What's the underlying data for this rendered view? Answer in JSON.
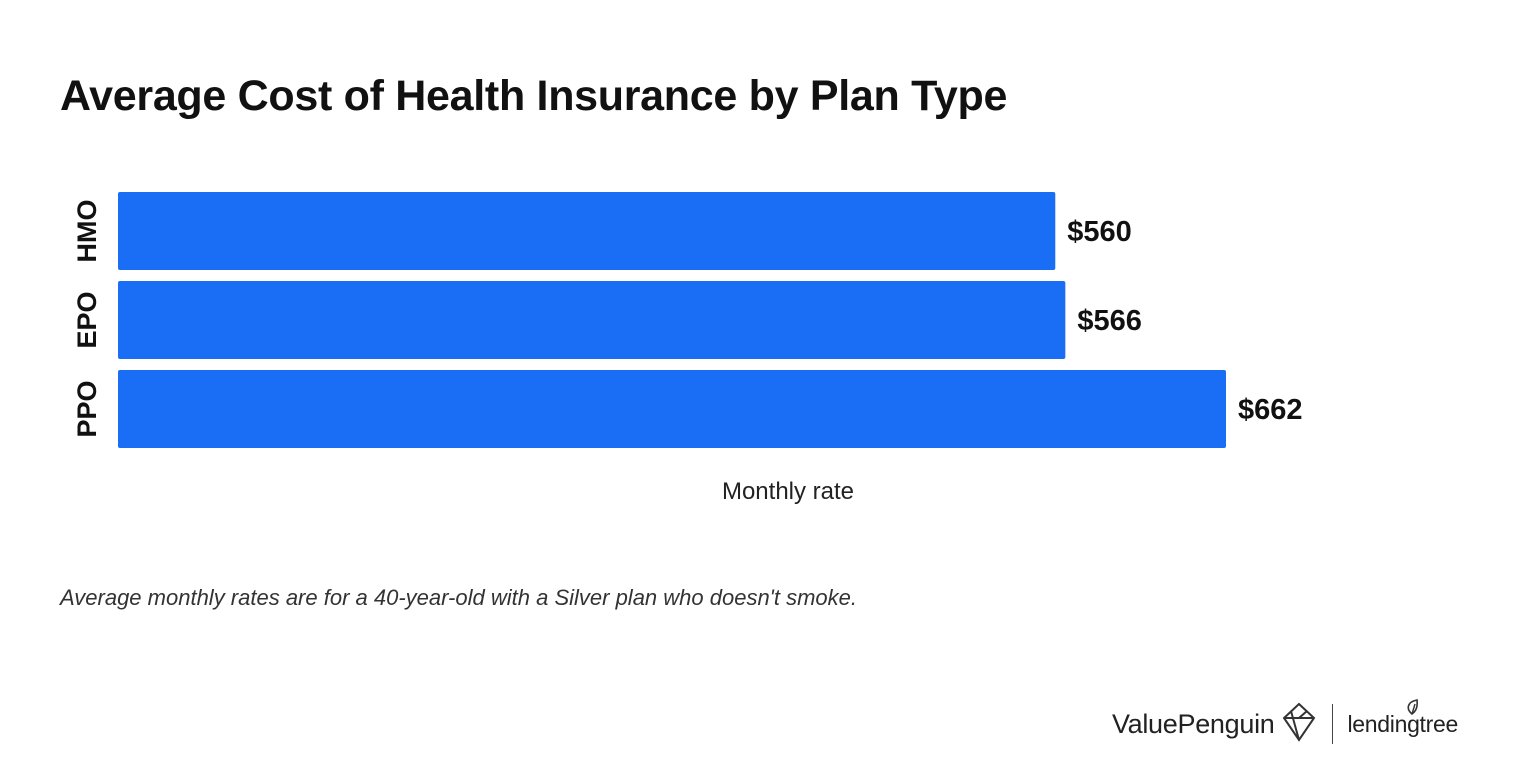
{
  "chart_data": {
    "type": "bar",
    "orientation": "horizontal",
    "title": "Average Cost of Health Insurance by Plan Type",
    "categories": [
      "HMO",
      "EPO",
      "PPO"
    ],
    "values": [
      560,
      566,
      662
    ],
    "value_labels": [
      "$560",
      "$566",
      "$662"
    ],
    "xlabel": "Monthly rate",
    "ylabel": "",
    "xlim": [
      0,
      662
    ],
    "grid": false,
    "colors": {
      "bar": "#1a6ef5"
    }
  },
  "footnote": "Average monthly rates are for a 40-year-old with a Silver plan who doesn't smoke.",
  "footer": {
    "brand1": "ValuePenguin",
    "brand1_icon": "valuepenguin-logo-icon",
    "brand2": "lendingtree",
    "brand2_icon": "leaf-icon"
  }
}
